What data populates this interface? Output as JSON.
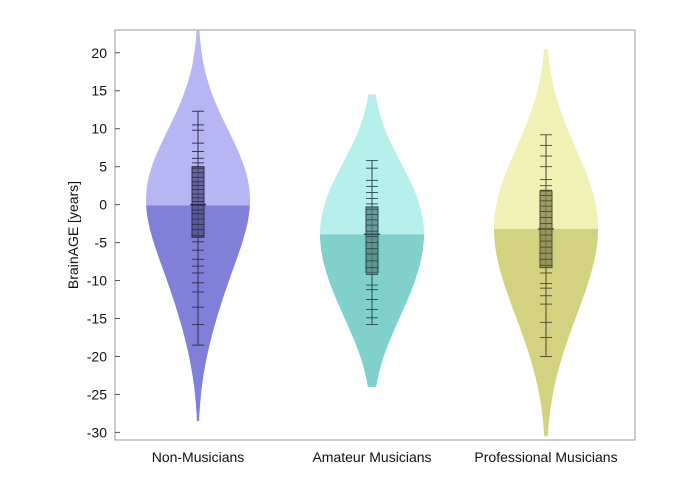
{
  "chart_data": {
    "type": "violin",
    "ylabel": "BrainAGE [years]",
    "ylim": [
      -31,
      23
    ],
    "yticks": [
      20,
      15,
      10,
      5,
      0,
      -5,
      -10,
      -15,
      -20,
      -25,
      -30
    ],
    "categories": [
      "Non-Musicians",
      "Amateur Musicians",
      "Professional Musicians"
    ],
    "grid": false,
    "series": [
      {
        "category": "Non-Musicians",
        "color": "#8e8ef0",
        "mean": -0.1,
        "median": 0.0,
        "q1": -4.3,
        "q3": 5.0,
        "whisker_low": -18.5,
        "whisker_high": 12.3,
        "density_min": -28.5,
        "density_max": 23.0,
        "observations": [
          12.3,
          10.5,
          9.8,
          8.1,
          7.0,
          6.1,
          5.5,
          4.8,
          4.2,
          3.6,
          3.0,
          2.5,
          2.0,
          1.4,
          0.9,
          0.4,
          -0.1,
          -0.7,
          -1.2,
          -1.9,
          -2.6,
          -3.3,
          -4.1,
          -4.9,
          -6.0,
          -7.2,
          -8.1,
          -9.0,
          -10.3,
          -11.5,
          -13.5,
          -15.8,
          -18.5
        ]
      },
      {
        "category": "Amateur Musicians",
        "color": "#8ee8e3",
        "mean": -3.9,
        "median": -3.9,
        "q1": -9.0,
        "q3": -0.3,
        "whisker_low": -15.8,
        "whisker_high": 5.8,
        "density_min": -24.0,
        "density_max": 14.5,
        "observations": [
          5.8,
          4.8,
          3.2,
          2.4,
          1.6,
          0.8,
          0.1,
          -0.6,
          -1.3,
          -2.0,
          -2.7,
          -3.5,
          -4.2,
          -5.0,
          -5.8,
          -6.5,
          -7.4,
          -8.3,
          -9.2,
          -10.6,
          -11.2,
          -12.5,
          -13.8,
          -14.9,
          -15.8
        ]
      },
      {
        "category": "Professional Musicians",
        "color": "#eae98f",
        "mean": -3.2,
        "median": -3.2,
        "q1": -8.3,
        "q3": 1.8,
        "whisker_low": -20.0,
        "whisker_high": 9.2,
        "density_min": -30.5,
        "density_max": 20.5,
        "observations": [
          9.2,
          7.8,
          6.4,
          5.0,
          3.3,
          2.5,
          1.9,
          1.2,
          0.5,
          -0.2,
          -0.9,
          -1.7,
          -2.5,
          -3.2,
          -4.0,
          -4.8,
          -5.6,
          -6.4,
          -7.2,
          -8.0,
          -9.0,
          -10.4,
          -11.0,
          -12.0,
          -13.1,
          -15.5,
          -17.5,
          -20.0
        ]
      }
    ]
  }
}
